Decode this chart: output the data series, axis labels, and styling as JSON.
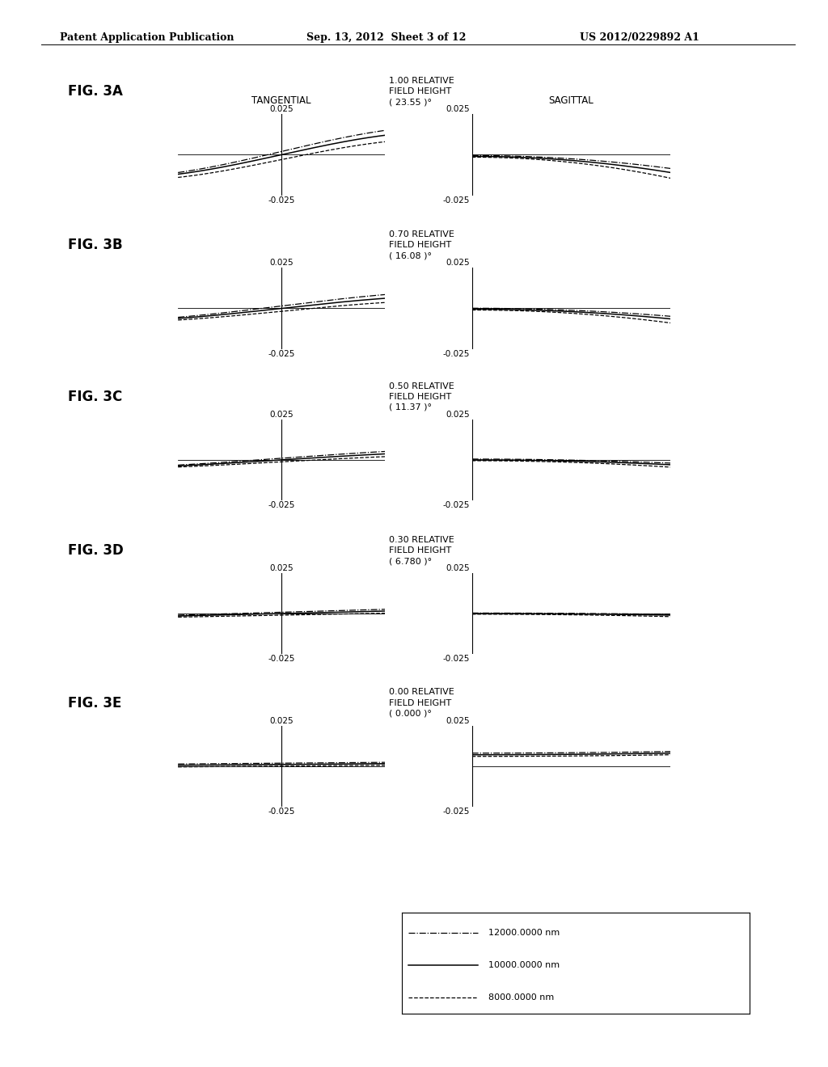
{
  "header_left": "Patent Application Publication",
  "header_mid": "Sep. 13, 2012  Sheet 3 of 12",
  "header_right": "US 2012/0229892 A1",
  "figures": [
    {
      "label": "FIG. 3A",
      "field_height_line1": "1.00 RELATIVE",
      "field_height_line2": "FIELD HEIGHT",
      "field_height_line3": "( 23.55 )°"
    },
    {
      "label": "FIG. 3B",
      "field_height_line1": "0.70 RELATIVE",
      "field_height_line2": "FIELD HEIGHT",
      "field_height_line3": "( 16.08 )°"
    },
    {
      "label": "FIG. 3C",
      "field_height_line1": "0.50 RELATIVE",
      "field_height_line2": "FIELD HEIGHT",
      "field_height_line3": "( 11.37 )°"
    },
    {
      "label": "FIG. 3D",
      "field_height_line1": "0.30 RELATIVE",
      "field_height_line2": "FIELD HEIGHT",
      "field_height_line3": "( 6.780 )°"
    },
    {
      "label": "FIG. 3E",
      "field_height_line1": "0.00 RELATIVE",
      "field_height_line2": "FIELD HEIGHT",
      "field_height_line3": "( 0.000 )°"
    }
  ],
  "legend_entries": [
    {
      "label": "12000.0000 nm",
      "linestyle": "dashdot"
    },
    {
      "label": "10000.0000 nm",
      "linestyle": "solid"
    },
    {
      "label": "8000.0000 nm",
      "linestyle": "dashed"
    }
  ],
  "ylim": [
    -0.025,
    0.025
  ],
  "tang_xlim": [
    -1.0,
    1.0
  ],
  "sag_xlim": [
    0.0,
    1.0
  ],
  "background_color": "#ffffff",
  "line_color": "#000000",
  "tang_label": "TANGENTIAL",
  "sag_label": "SAGITTAL"
}
